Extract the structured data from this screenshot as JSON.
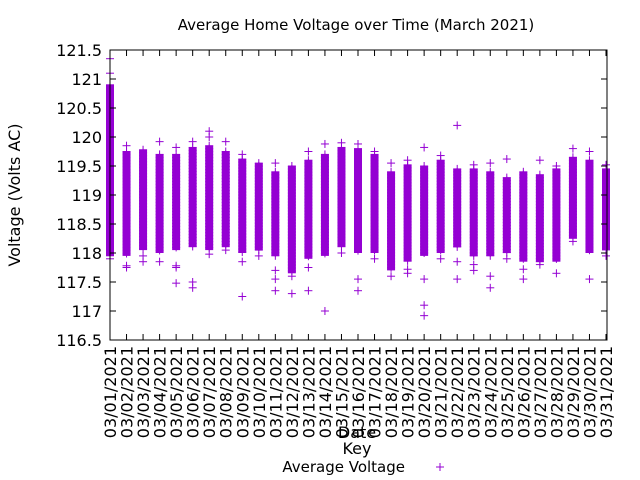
{
  "chart_data": {
    "type": "scatter",
    "title": "Average Home Voltage over Time (March 2021)",
    "xlabel": "Date",
    "ylabel": "Voltage (Volts AC)",
    "ylim": [
      116.5,
      121.5
    ],
    "yticks": [
      "116.5",
      "117",
      "117.5",
      "118",
      "118.5",
      "119",
      "119.5",
      "120",
      "120.5",
      "121",
      "121.5"
    ],
    "grid": false,
    "legend": {
      "title": "Key",
      "position": "bottom-center",
      "entries": [
        "Average Voltage"
      ]
    },
    "marker": "+",
    "color": "#9400D3",
    "categories": [
      "03/01/2021",
      "03/02/2021",
      "03/03/2021",
      "03/04/2021",
      "03/05/2021",
      "03/06/2021",
      "03/07/2021",
      "03/08/2021",
      "03/09/2021",
      "03/10/2021",
      "03/11/2021",
      "03/12/2021",
      "03/13/2021",
      "03/14/2021",
      "03/15/2021",
      "03/16/2021",
      "03/17/2021",
      "03/18/2021",
      "03/19/2021",
      "03/20/2021",
      "03/21/2021",
      "03/22/2021",
      "03/23/2021",
      "03/24/2021",
      "03/25/2021",
      "03/26/2021",
      "03/27/2021",
      "03/28/2021",
      "03/29/2021",
      "03/30/2021",
      "03/31/2021"
    ],
    "series": [
      {
        "name": "Average Voltage",
        "daily": [
          {
            "date": "03/01/2021",
            "low": 117.95,
            "high": 120.9,
            "outliers": [
              121.35,
              121.1,
              117.9
            ]
          },
          {
            "date": "03/02/2021",
            "low": 117.95,
            "high": 119.75,
            "outliers": [
              119.85,
              117.75,
              117.78
            ]
          },
          {
            "date": "03/03/2021",
            "low": 118.05,
            "high": 119.78,
            "outliers": [
              117.95,
              117.85
            ]
          },
          {
            "date": "03/04/2021",
            "low": 118.0,
            "high": 119.7,
            "outliers": [
              119.92,
              117.85
            ]
          },
          {
            "date": "03/05/2021",
            "low": 118.05,
            "high": 119.7,
            "outliers": [
              119.82,
              117.78,
              117.48,
              117.75
            ]
          },
          {
            "date": "03/06/2021",
            "low": 118.1,
            "high": 119.82,
            "outliers": [
              119.92,
              117.5,
              117.4
            ]
          },
          {
            "date": "03/07/2021",
            "low": 118.05,
            "high": 119.85,
            "outliers": [
              120.1,
              120.0,
              117.98
            ]
          },
          {
            "date": "03/08/2021",
            "low": 118.1,
            "high": 119.75,
            "outliers": [
              119.92,
              118.05
            ]
          },
          {
            "date": "03/09/2021",
            "low": 118.0,
            "high": 119.62,
            "outliers": [
              119.7,
              117.85,
              117.25
            ]
          },
          {
            "date": "03/10/2021",
            "low": 118.05,
            "high": 119.55,
            "outliers": [
              117.95
            ]
          },
          {
            "date": "03/11/2021",
            "low": 117.95,
            "high": 119.4,
            "outliers": [
              119.55,
              117.7,
              117.55,
              117.35
            ]
          },
          {
            "date": "03/12/2021",
            "low": 117.65,
            "high": 119.5,
            "outliers": [
              117.6,
              117.3
            ]
          },
          {
            "date": "03/13/2021",
            "low": 117.9,
            "high": 119.6,
            "outliers": [
              119.75,
              117.75,
              117.35
            ]
          },
          {
            "date": "03/14/2021",
            "low": 117.95,
            "high": 119.7,
            "outliers": [
              119.88,
              117.0
            ]
          },
          {
            "date": "03/15/2021",
            "low": 118.1,
            "high": 119.82,
            "outliers": [
              119.9,
              118.0
            ]
          },
          {
            "date": "03/16/2021",
            "low": 118.0,
            "high": 119.8,
            "outliers": [
              119.88,
              117.55,
              117.35
            ]
          },
          {
            "date": "03/17/2021",
            "low": 118.0,
            "high": 119.7,
            "outliers": [
              119.75,
              117.9
            ]
          },
          {
            "date": "03/18/2021",
            "low": 117.7,
            "high": 119.4,
            "outliers": [
              119.55,
              117.6
            ]
          },
          {
            "date": "03/19/2021",
            "low": 117.85,
            "high": 119.52,
            "outliers": [
              119.6,
              117.72,
              117.65
            ]
          },
          {
            "date": "03/20/2021",
            "low": 117.95,
            "high": 119.5,
            "outliers": [
              119.82,
              117.55,
              117.1,
              116.92
            ]
          },
          {
            "date": "03/21/2021",
            "low": 118.0,
            "high": 119.6,
            "outliers": [
              119.68,
              117.9
            ]
          },
          {
            "date": "03/22/2021",
            "low": 118.1,
            "high": 119.45,
            "outliers": [
              120.2,
              117.85,
              117.55
            ]
          },
          {
            "date": "03/23/2021",
            "low": 117.95,
            "high": 119.45,
            "outliers": [
              119.52,
              117.8,
              117.7
            ]
          },
          {
            "date": "03/24/2021",
            "low": 117.95,
            "high": 119.4,
            "outliers": [
              119.55,
              117.6,
              117.4
            ]
          },
          {
            "date": "03/25/2021",
            "low": 118.0,
            "high": 119.3,
            "outliers": [
              119.62,
              117.9
            ]
          },
          {
            "date": "03/26/2021",
            "low": 117.85,
            "high": 119.4,
            "outliers": [
              117.72,
              117.55
            ]
          },
          {
            "date": "03/27/2021",
            "low": 117.85,
            "high": 119.35,
            "outliers": [
              119.6,
              117.8
            ]
          },
          {
            "date": "03/28/2021",
            "low": 117.85,
            "high": 119.45,
            "outliers": [
              119.5,
              117.65
            ]
          },
          {
            "date": "03/29/2021",
            "low": 118.25,
            "high": 119.65,
            "outliers": [
              119.8,
              118.2
            ]
          },
          {
            "date": "03/30/2021",
            "low": 118.0,
            "high": 119.6,
            "outliers": [
              119.75,
              117.55
            ]
          },
          {
            "date": "03/31/2021",
            "low": 118.05,
            "high": 119.45,
            "outliers": [
              119.52,
              117.95
            ]
          }
        ]
      }
    ]
  }
}
